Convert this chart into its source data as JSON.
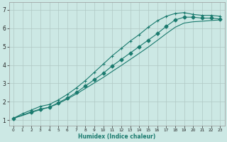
{
  "xlabel": "Humidex (Indice chaleur)",
  "background_color": "#cce8e4",
  "grid_color": "#b0c8c4",
  "line_color": "#1a7a6e",
  "xlim_min": -0.5,
  "xlim_max": 23.5,
  "ylim_min": 0.7,
  "ylim_max": 7.4,
  "xticks": [
    0,
    1,
    2,
    3,
    4,
    5,
    6,
    7,
    8,
    9,
    10,
    11,
    12,
    13,
    14,
    15,
    16,
    17,
    18,
    19,
    20,
    21,
    22,
    23
  ],
  "yticks": [
    1,
    2,
    3,
    4,
    5,
    6,
    7
  ],
  "line1_x": [
    0,
    1,
    2,
    3,
    4,
    5,
    6,
    7,
    8,
    9,
    10,
    11,
    12,
    13,
    14,
    15,
    16,
    17,
    18,
    19,
    20,
    21,
    22,
    23
  ],
  "line1_y": [
    1.1,
    1.35,
    1.55,
    1.75,
    1.85,
    2.1,
    2.4,
    2.75,
    3.15,
    3.6,
    4.05,
    4.5,
    4.9,
    5.3,
    5.65,
    6.05,
    6.4,
    6.65,
    6.8,
    6.85,
    6.75,
    6.7,
    6.7,
    6.65
  ],
  "line2_x": [
    0,
    2,
    3,
    4,
    5,
    6,
    7,
    8,
    9,
    10,
    11,
    12,
    13,
    14,
    15,
    16,
    17,
    18,
    19,
    20,
    21,
    22,
    23
  ],
  "line2_y": [
    1.1,
    1.45,
    1.6,
    1.7,
    1.95,
    2.2,
    2.5,
    2.85,
    3.2,
    3.55,
    3.95,
    4.3,
    4.65,
    5.0,
    5.35,
    5.7,
    6.1,
    6.45,
    6.6,
    6.6,
    6.55,
    6.55,
    6.5
  ],
  "line3_x": [
    0,
    1,
    2,
    3,
    4,
    5,
    6,
    7,
    8,
    9,
    10,
    11,
    12,
    13,
    14,
    15,
    16,
    17,
    18,
    19,
    20,
    21,
    22,
    23
  ],
  "line3_y": [
    1.1,
    1.25,
    1.42,
    1.57,
    1.7,
    1.9,
    2.15,
    2.42,
    2.72,
    3.02,
    3.32,
    3.65,
    3.97,
    4.3,
    4.63,
    4.97,
    5.33,
    5.7,
    6.05,
    6.28,
    6.35,
    6.38,
    6.42,
    6.45
  ]
}
